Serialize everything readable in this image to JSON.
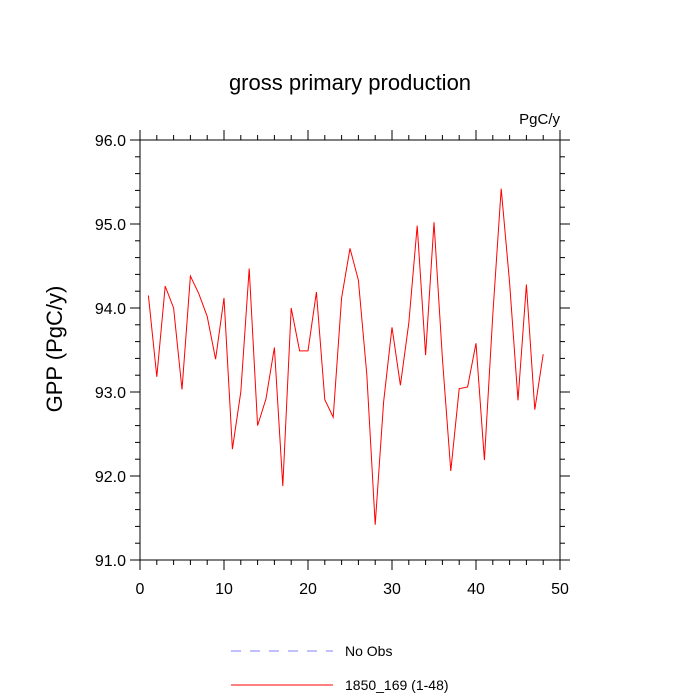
{
  "chart_data": {
    "type": "line",
    "title": "gross primary production",
    "units": "PgC/y",
    "xlabel": "",
    "ylabel": "GPP  (PgC/y)",
    "xlim": [
      0,
      50
    ],
    "ylim": [
      91.0,
      96.0
    ],
    "x_ticks": [
      0,
      10,
      20,
      30,
      40,
      50
    ],
    "y_ticks": [
      91.0,
      92.0,
      93.0,
      94.0,
      95.0,
      96.0
    ],
    "x_tick_labels": [
      "0",
      "10",
      "20",
      "30",
      "40",
      "50"
    ],
    "y_tick_labels": [
      "91.0",
      "92.0",
      "93.0",
      "94.0",
      "95.0",
      "96.0"
    ],
    "grid": false,
    "legend_position": "bottom",
    "legend": [
      {
        "name": "No Obs",
        "color": "#8080ff",
        "style": "dashed"
      },
      {
        "name": "1850_169 (1-48)",
        "color": "#ff0000",
        "style": "solid"
      }
    ],
    "series": [
      {
        "name": "1850_169 (1-48)",
        "color": "#ff0000",
        "x": [
          1,
          2,
          3,
          4,
          5,
          6,
          7,
          8,
          9,
          10,
          11,
          12,
          13,
          14,
          15,
          16,
          17,
          18,
          19,
          20,
          21,
          22,
          23,
          24,
          25,
          26,
          27,
          28,
          29,
          30,
          31,
          32,
          33,
          34,
          35,
          36,
          37,
          38,
          39,
          40,
          41,
          42,
          43,
          44,
          45,
          46,
          47,
          48
        ],
        "values": [
          94.15,
          93.18,
          94.26,
          94.0,
          93.03,
          94.38,
          94.17,
          93.9,
          93.39,
          94.12,
          92.32,
          93.0,
          94.47,
          92.6,
          92.92,
          93.53,
          91.88,
          94.0,
          93.49,
          93.49,
          94.19,
          92.91,
          92.7,
          94.12,
          94.71,
          94.33,
          93.21,
          91.42,
          92.88,
          93.77,
          93.08,
          93.82,
          94.98,
          93.44,
          95.02,
          93.4,
          92.06,
          93.04,
          93.06,
          93.58,
          92.19,
          93.92,
          95.42,
          94.3,
          92.9,
          94.28,
          92.79,
          93.45
        ]
      }
    ]
  }
}
